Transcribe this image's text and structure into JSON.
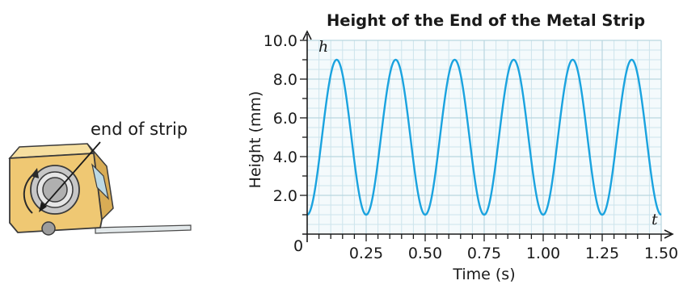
{
  "illustration": {
    "label": "end of strip"
  },
  "chart_data": {
    "type": "line",
    "title": "Height of the End of the Metal Strip",
    "xlabel": "Time (s)",
    "ylabel": "Height (mm)",
    "x_axis_symbol": "t",
    "y_axis_symbol": "h",
    "origin_label": "0",
    "xlim": [
      0,
      1.5
    ],
    "ylim": [
      0,
      10
    ],
    "x_ticks": [
      {
        "value": 0.25,
        "label": "0.25"
      },
      {
        "value": 0.5,
        "label": "0.50"
      },
      {
        "value": 0.75,
        "label": "0.75"
      },
      {
        "value": 1.0,
        "label": "1.00"
      },
      {
        "value": 1.25,
        "label": "1.25"
      },
      {
        "value": 1.5,
        "label": "1.50"
      }
    ],
    "y_ticks": [
      {
        "value": 2,
        "label": "2.0"
      },
      {
        "value": 4,
        "label": "4.0"
      },
      {
        "value": 6,
        "label": "6.0"
      },
      {
        "value": 8,
        "label": "8.0"
      },
      {
        "value": 10,
        "label": "10.0"
      }
    ],
    "grid": true,
    "curve": {
      "kind": "sinusoid",
      "min": 1,
      "max": 9,
      "period": 0.25,
      "value_at_t0": 1,
      "t_start": 0,
      "t_end": 1.5
    },
    "colors": {
      "curve": "#1aa3df",
      "grid": "#cde4ec",
      "background": "#f4fafc",
      "axis": "#1a1a1a"
    }
  }
}
